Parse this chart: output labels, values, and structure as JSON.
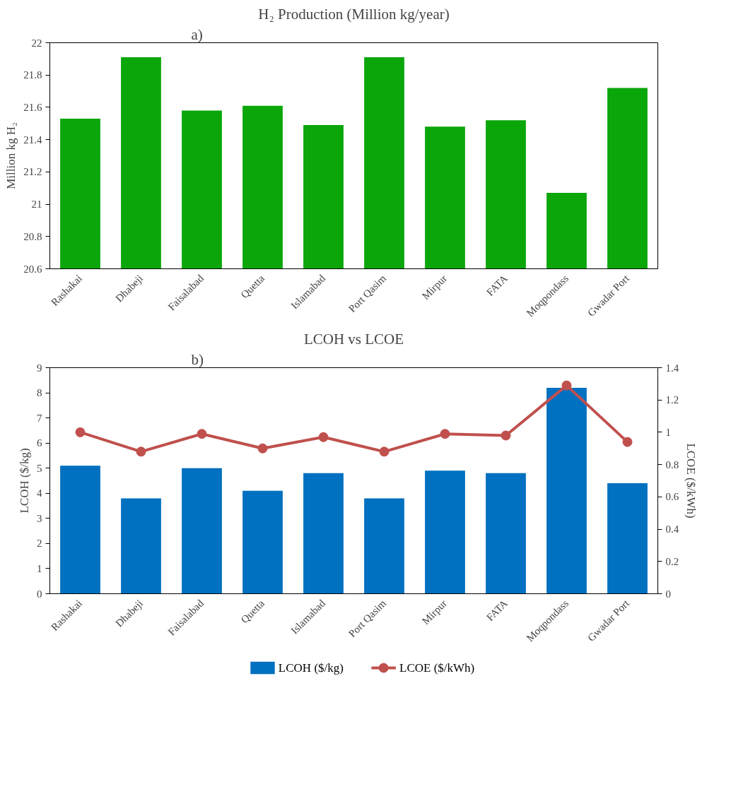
{
  "chart_data": [
    {
      "type": "bar",
      "title": "H₂ Production (Million kg/year)",
      "annotations": [
        "a)"
      ],
      "ylabel": "Million kg H₂",
      "categories": [
        "Rashakai",
        "Dhabeji",
        "Faisalabad",
        "Quetta",
        "Islamabad",
        "Port Qasim",
        "Mirpur",
        "FATA",
        "Moqpondass",
        "Gwadar Port"
      ],
      "series": [
        {
          "color": "#0aa60a",
          "values": [
            21.53,
            21.91,
            21.58,
            21.61,
            21.49,
            21.91,
            21.48,
            21.52,
            21.07,
            21.72
          ]
        }
      ],
      "ylim": [
        20.6,
        22
      ],
      "yticks": [
        20.6,
        20.8,
        21,
        21.2,
        21.4,
        21.6,
        21.8,
        22
      ],
      "grid": false
    },
    {
      "type": "bar",
      "title": "LCOH vs LCOE",
      "annotations": [
        "b)"
      ],
      "ylabel": "LCOH ($/kg)",
      "y2label": "LCOE ($/kWh)",
      "categories": [
        "Rashakai",
        "Dhabeji",
        "Faisalabad",
        "Quetta",
        "Islamabad",
        "Port Qasim",
        "Mirpur",
        "FATA",
        "Moqpondass",
        "Gwadar Port"
      ],
      "series": [
        {
          "name": "LCOH ($/kg)",
          "type": "bar",
          "color": "#0070c0",
          "values": [
            5.1,
            3.8,
            5.0,
            4.1,
            4.8,
            3.8,
            4.9,
            4.8,
            8.2,
            4.4
          ]
        },
        {
          "name": "LCOE ($/kWh)",
          "type": "line",
          "axis": "y2",
          "color": "#c0504d",
          "marker": "circle",
          "values": [
            1.0,
            0.88,
            0.99,
            0.9,
            0.97,
            0.88,
            0.99,
            0.98,
            1.29,
            0.94
          ]
        }
      ],
      "ylim": [
        0,
        9
      ],
      "yticks": [
        0,
        1,
        2,
        3,
        4,
        5,
        6,
        7,
        8,
        9
      ],
      "y2lim": [
        0,
        1.4
      ],
      "y2ticks": [
        0,
        0.2,
        0.4,
        0.6,
        0.8,
        1,
        1.2,
        1.4
      ],
      "grid": false,
      "legend": "bottom"
    }
  ]
}
